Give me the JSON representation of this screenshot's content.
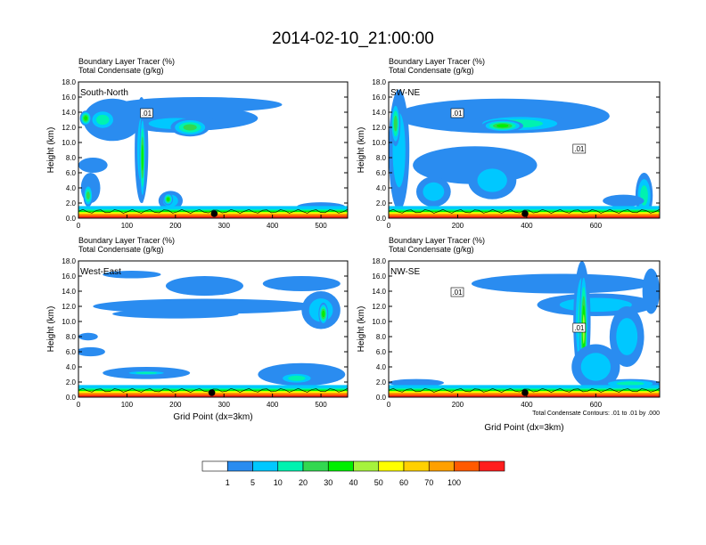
{
  "title": "2014-02-10_21:00:00",
  "chart_data": [
    {
      "type": "heatmap",
      "panel": "South-North",
      "variable_lines": [
        "Boundary Layer Tracer   (%)",
        "Total Condensate   (g/kg)"
      ],
      "ylabel": "Height (km)",
      "xlabel": "",
      "xlim": [
        0,
        555
      ],
      "ylim": [
        0,
        18
      ],
      "xticks": [
        "0",
        "100",
        "200",
        "300",
        "400",
        "500"
      ],
      "yticks": [
        "0.0",
        "2.0",
        "4.0",
        "6.0",
        "8.0",
        "10.0",
        "12.0",
        "14.0",
        "16.0",
        "18.0"
      ],
      "marker_x": 280,
      "contour_labels": [
        ".01"
      ],
      "blobs": [
        {
          "x": 250,
          "y": 15.0,
          "rx": 170,
          "ry": 1.0,
          "level": 1
        },
        {
          "x": 200,
          "y": 13.2,
          "rx": 170,
          "ry": 1.7,
          "level": 1
        },
        {
          "x": 200,
          "y": 12.5,
          "rx": 90,
          "ry": 1.2,
          "level": 2
        },
        {
          "x": 70,
          "y": 13.0,
          "rx": 60,
          "ry": 2.8,
          "level": 1
        },
        {
          "x": 50,
          "y": 13.0,
          "rx": 30,
          "ry": 1.5,
          "level": 3
        },
        {
          "x": 15,
          "y": 13.2,
          "rx": 12,
          "ry": 1.0,
          "level": 5
        },
        {
          "x": 230,
          "y": 12.0,
          "rx": 40,
          "ry": 1.2,
          "level": 4
        },
        {
          "x": 130,
          "y": 9.0,
          "rx": 14,
          "ry": 7.0,
          "level": 2
        },
        {
          "x": 132,
          "y": 8.0,
          "rx": 6,
          "ry": 6.0,
          "level": 5
        },
        {
          "x": 30,
          "y": 7.0,
          "rx": 30,
          "ry": 1.0,
          "level": 1
        },
        {
          "x": 25,
          "y": 4.0,
          "rx": 20,
          "ry": 2.0,
          "level": 1
        },
        {
          "x": 20,
          "y": 3.0,
          "rx": 10,
          "ry": 1.5,
          "level": 4
        },
        {
          "x": 190,
          "y": 2.3,
          "rx": 25,
          "ry": 1.3,
          "level": 2
        },
        {
          "x": 185,
          "y": 2.5,
          "rx": 10,
          "ry": 0.8,
          "level": 5
        },
        {
          "x": 500,
          "y": 1.5,
          "rx": 50,
          "ry": 0.6,
          "level": 1
        }
      ]
    },
    {
      "type": "heatmap",
      "panel": "SW-NE",
      "variable_lines": [
        "Boundary Layer Tracer   (%)",
        "Total Condensate   (g/kg)"
      ],
      "ylabel": "Height (km)",
      "xlabel": "",
      "xlim": [
        0,
        785
      ],
      "ylim": [
        0,
        18
      ],
      "xticks": [
        "0",
        "200",
        "400",
        "600"
      ],
      "yticks": [
        "0.0",
        "2.0",
        "4.0",
        "6.0",
        "8.0",
        "10.0",
        "12.0",
        "14.0",
        "16.0",
        "18.0"
      ],
      "marker_x": 395,
      "contour_labels": [
        ".01",
        ".01"
      ],
      "blobs": [
        {
          "x": 330,
          "y": 13.5,
          "rx": 310,
          "ry": 2.3,
          "level": 1
        },
        {
          "x": 380,
          "y": 12.5,
          "rx": 150,
          "ry": 1.2,
          "level": 3
        },
        {
          "x": 330,
          "y": 12.2,
          "rx": 60,
          "ry": 0.8,
          "level": 5
        },
        {
          "x": 30,
          "y": 9.0,
          "rx": 30,
          "ry": 8.0,
          "level": 2
        },
        {
          "x": 20,
          "y": 12.5,
          "rx": 14,
          "ry": 3.0,
          "level": 4
        },
        {
          "x": 250,
          "y": 7.0,
          "rx": 180,
          "ry": 2.5,
          "level": 1
        },
        {
          "x": 300,
          "y": 5.0,
          "rx": 70,
          "ry": 2.5,
          "level": 2
        },
        {
          "x": 130,
          "y": 3.5,
          "rx": 50,
          "ry": 2.0,
          "level": 2
        },
        {
          "x": 740,
          "y": 3.0,
          "rx": 25,
          "ry": 3.0,
          "level": 3
        },
        {
          "x": 680,
          "y": 2.3,
          "rx": 60,
          "ry": 0.8,
          "level": 1
        }
      ]
    },
    {
      "type": "heatmap",
      "panel": "West-East",
      "variable_lines": [
        "Boundary Layer Tracer   (%)",
        "Total Condensate   (g/kg)"
      ],
      "ylabel": "Height (km)",
      "xlabel": "Grid Point (dx=3km)",
      "xlim": [
        0,
        555
      ],
      "ylim": [
        0,
        18
      ],
      "xticks": [
        "0",
        "100",
        "200",
        "300",
        "400",
        "500"
      ],
      "yticks": [
        "0.0",
        "2.0",
        "4.0",
        "6.0",
        "8.0",
        "10.0",
        "12.0",
        "14.0",
        "16.0",
        "18.0"
      ],
      "marker_x": 275,
      "contour_labels": [],
      "blobs": [
        {
          "x": 260,
          "y": 14.7,
          "rx": 80,
          "ry": 1.3,
          "level": 1
        },
        {
          "x": 460,
          "y": 15.0,
          "rx": 80,
          "ry": 1.0,
          "level": 1
        },
        {
          "x": 110,
          "y": 16.2,
          "rx": 60,
          "ry": 0.5,
          "level": 1
        },
        {
          "x": 260,
          "y": 12.0,
          "rx": 230,
          "ry": 1.0,
          "level": 1
        },
        {
          "x": 200,
          "y": 11.0,
          "rx": 130,
          "ry": 0.6,
          "level": 1
        },
        {
          "x": 500,
          "y": 11.5,
          "rx": 40,
          "ry": 2.5,
          "level": 2
        },
        {
          "x": 505,
          "y": 11.0,
          "rx": 10,
          "ry": 1.5,
          "level": 5
        },
        {
          "x": 20,
          "y": 8.0,
          "rx": 20,
          "ry": 0.5,
          "level": 1
        },
        {
          "x": 25,
          "y": 6.0,
          "rx": 30,
          "ry": 0.6,
          "level": 1
        },
        {
          "x": 140,
          "y": 3.2,
          "rx": 90,
          "ry": 0.8,
          "level": 1
        },
        {
          "x": 140,
          "y": 3.2,
          "rx": 50,
          "ry": 0.3,
          "level": 3
        },
        {
          "x": 460,
          "y": 3.0,
          "rx": 90,
          "ry": 1.5,
          "level": 1
        },
        {
          "x": 450,
          "y": 2.5,
          "rx": 40,
          "ry": 0.8,
          "level": 3
        }
      ]
    },
    {
      "type": "heatmap",
      "panel": "NW-SE",
      "variable_lines": [
        "Boundary Layer Tracer   (%)",
        "Total Condensate   (g/kg)"
      ],
      "ylabel": "Height (km)",
      "xlabel": "Grid Point (dx=3km)",
      "xlim": [
        0,
        785
      ],
      "ylim": [
        0,
        18
      ],
      "xticks": [
        "0",
        "200",
        "400",
        "600"
      ],
      "yticks": [
        "0.0",
        "2.0",
        "4.0",
        "6.0",
        "8.0",
        "10.0",
        "12.0",
        "14.0",
        "16.0",
        "18.0"
      ],
      "marker_x": 395,
      "contour_labels": [
        ".01",
        ".01"
      ],
      "footnote": "Total Condensate Contours: .01 to .01 by .000",
      "blobs": [
        {
          "x": 500,
          "y": 15.0,
          "rx": 260,
          "ry": 1.3,
          "level": 1
        },
        {
          "x": 600,
          "y": 12.2,
          "rx": 170,
          "ry": 1.5,
          "level": 2
        },
        {
          "x": 560,
          "y": 10.0,
          "rx": 25,
          "ry": 8.0,
          "level": 3
        },
        {
          "x": 565,
          "y": 9.0,
          "rx": 12,
          "ry": 8.0,
          "level": 6
        },
        {
          "x": 690,
          "y": 8.0,
          "rx": 50,
          "ry": 4.0,
          "level": 2
        },
        {
          "x": 600,
          "y": 4.0,
          "rx": 70,
          "ry": 3.0,
          "level": 2
        },
        {
          "x": 80,
          "y": 1.9,
          "rx": 80,
          "ry": 0.5,
          "level": 1
        },
        {
          "x": 700,
          "y": 1.8,
          "rx": 90,
          "ry": 0.6,
          "level": 3
        },
        {
          "x": 760,
          "y": 14.0,
          "rx": 25,
          "ry": 3.0,
          "level": 1
        }
      ]
    }
  ],
  "colorbar": {
    "labels": [
      "1",
      "5",
      "10",
      "20",
      "30",
      "40",
      "50",
      "60",
      "70",
      "100"
    ],
    "colors": [
      "#ffffff",
      "#2a8cf0",
      "#00c8ff",
      "#00f2b0",
      "#32d850",
      "#00f000",
      "#a6f23c",
      "#ffff00",
      "#ffd000",
      "#ffa000",
      "#ff5a00",
      "#ff1e1e"
    ]
  }
}
